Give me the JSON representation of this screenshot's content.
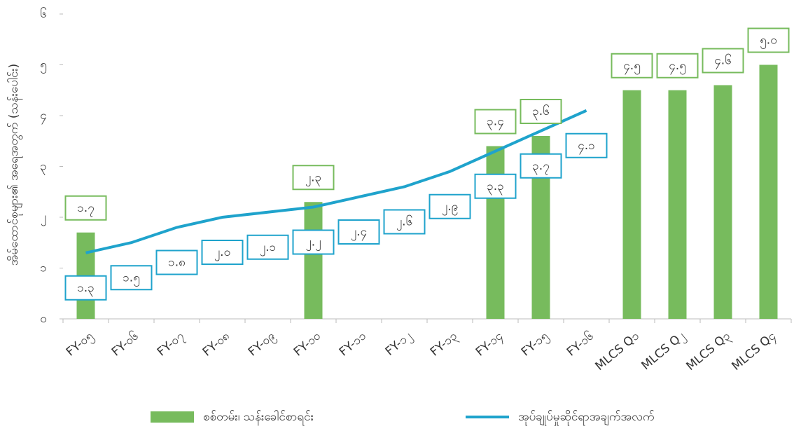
{
  "chart_data": {
    "type": "bar-line",
    "y_label": "အိမ်ထောင်စုများ၏ အရေအတွက် (သန်းပေါင်း)",
    "categories": [
      "FY-၀၅",
      "FY-၀၆",
      "FY-၀၇",
      "FY-၀၈",
      "FY-၀၉",
      "FY-၁၀",
      "FY-၁၁",
      "FY-၁၂",
      "FY-၁၃",
      "FY-၁၄",
      "FY-၁၅",
      "FY-၁၆",
      "MLCS Q၁",
      "MLCS Q၂",
      "MLCS Q၃",
      "MLCS Q၄"
    ],
    "series": [
      {
        "name": "စစ်တမ်း၊ သန်းခေါင်စာရင်း",
        "type": "bar",
        "color": "#77bb5d",
        "values": [
          1.7,
          null,
          null,
          null,
          null,
          2.3,
          null,
          null,
          null,
          3.4,
          3.6,
          null,
          4.5,
          4.5,
          4.6,
          5.0
        ],
        "value_labels": [
          "၁.၇",
          null,
          null,
          null,
          null,
          "၂.၃",
          null,
          null,
          null,
          "၃.၄",
          "၃.၆",
          null,
          "၄.၅",
          "၄.၅",
          "၄.၆",
          "၅.၀"
        ]
      },
      {
        "name": "အုပ်ချုပ်မှုဆိုင်ရာအချက်အလက်",
        "type": "line",
        "color": "#1fa3cc",
        "values": [
          1.3,
          1.5,
          1.8,
          2.0,
          2.1,
          2.2,
          2.4,
          2.6,
          2.9,
          3.3,
          3.7,
          4.1,
          null,
          null,
          null,
          null
        ],
        "value_labels": [
          "၁.၃",
          "၁.၅",
          "၁.၈",
          "၂.၀",
          "၂.၁",
          "၂.၂",
          "၂.၄",
          "၂.၆",
          "၂.၉",
          "၃.၃",
          "၃.၇",
          "၄.၁",
          null,
          null,
          null,
          null
        ]
      }
    ],
    "ylim": [
      0,
      6
    ],
    "yticks": [
      {
        "value": 0,
        "label": "၀"
      },
      {
        "value": 1,
        "label": "၁"
      },
      {
        "value": 2,
        "label": "၂"
      },
      {
        "value": 3,
        "label": "၃"
      },
      {
        "value": 4,
        "label": "၄"
      },
      {
        "value": 5,
        "label": "၅"
      },
      {
        "value": 6,
        "label": "၆"
      }
    ],
    "grid": false,
    "legend": "bottom"
  }
}
